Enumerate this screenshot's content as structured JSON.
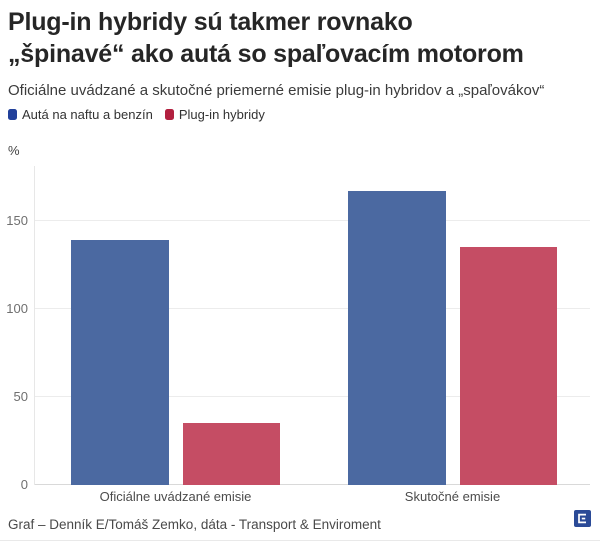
{
  "header": {
    "title_line1": "Plug-in hybridy sú takmer rovnako",
    "title_line2": "„špinavé“ ako autá so spaľovacím motorom",
    "subtitle": "Oficiálne uvádzané a skutočné priemerné emisie plug-in hybridov a „spaľovákov“"
  },
  "chart_data": {
    "type": "bar",
    "unit_label": "%",
    "categories": [
      "Oficiálne uvádzané emisie",
      "Skutočné emisie"
    ],
    "series": [
      {
        "name": "Autá na naftu a benzín",
        "color": "#4b69a1",
        "legend_color": "#21409a",
        "values": [
          139,
          167
        ]
      },
      {
        "name": "Plug-in hybridy",
        "color": "#c54d64",
        "legend_color": "#b2203f",
        "values": [
          35,
          135
        ]
      }
    ],
    "yticks": [
      0,
      50,
      100,
      150
    ],
    "ylim": [
      0,
      181
    ],
    "grid": true,
    "legend_position": "top-left"
  },
  "footer": {
    "source": "Graf – Denník E/Tomáš Zemko, dáta - Transport & Enviroment",
    "logo_letter": "E",
    "logo_color": "#2a4a97"
  }
}
